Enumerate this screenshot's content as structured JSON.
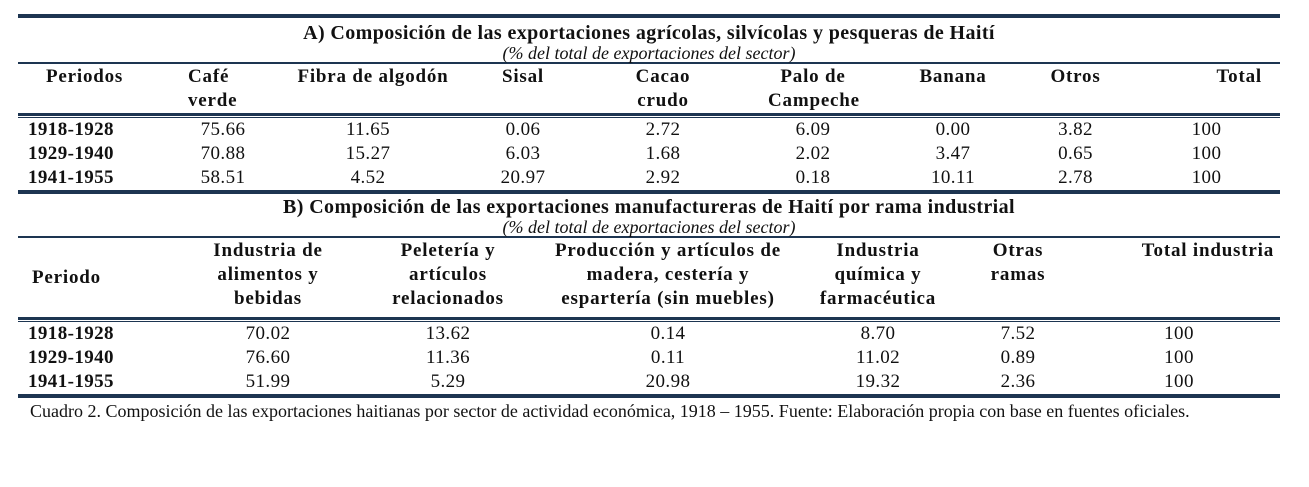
{
  "section_a": {
    "title": "A) Composición de las exportaciones agrícolas, silvícolas y pesqueras de Haití",
    "subtitle": "(% del total de exportaciones del sector)",
    "headers": [
      "Periodos",
      "Café verde",
      "Fibra de algodón",
      "Sisal",
      "Cacao crudo",
      "Palo de Campeche",
      "Banana",
      "Otros",
      "Total"
    ],
    "rows": [
      [
        "1918-1928",
        "75.66",
        "11.65",
        "0.06",
        "2.72",
        "6.09",
        "0.00",
        "3.82",
        "100"
      ],
      [
        "1929-1940",
        "70.88",
        "15.27",
        "6.03",
        "1.68",
        "2.02",
        "3.47",
        "0.65",
        "100"
      ],
      [
        "1941-1955",
        "58.51",
        "4.52",
        "20.97",
        "2.92",
        "0.18",
        "10.11",
        "2.78",
        "100"
      ]
    ]
  },
  "section_b": {
    "title": "B) Composición de las exportaciones manufactureras de Haití por rama industrial",
    "subtitle": "(% del total de exportaciones del sector)",
    "headers": [
      "Periodo",
      "Industria de alimentos y bebidas",
      "Peletería y artículos relacionados",
      "Producción y artículos de madera, cestería y espartería (sin muebles)",
      "Industria química y farmacéutica",
      "Otras ramas",
      "Total industria"
    ],
    "rows": [
      [
        "1918-1928",
        "70.02",
        "13.62",
        "0.14",
        "8.70",
        "7.52",
        "100"
      ],
      [
        "1929-1940",
        "76.60",
        "11.36",
        "0.11",
        "11.02",
        "0.89",
        "100"
      ],
      [
        "1941-1955",
        "51.99",
        "5.29",
        "20.98",
        "19.32",
        "2.36",
        "100"
      ]
    ]
  },
  "caption": "Cuadro 2. Composición de las exportaciones haitianas por sector de actividad económica, 1918 – 1955. Fuente: Elaboración propia con base en fuentes oficiales."
}
